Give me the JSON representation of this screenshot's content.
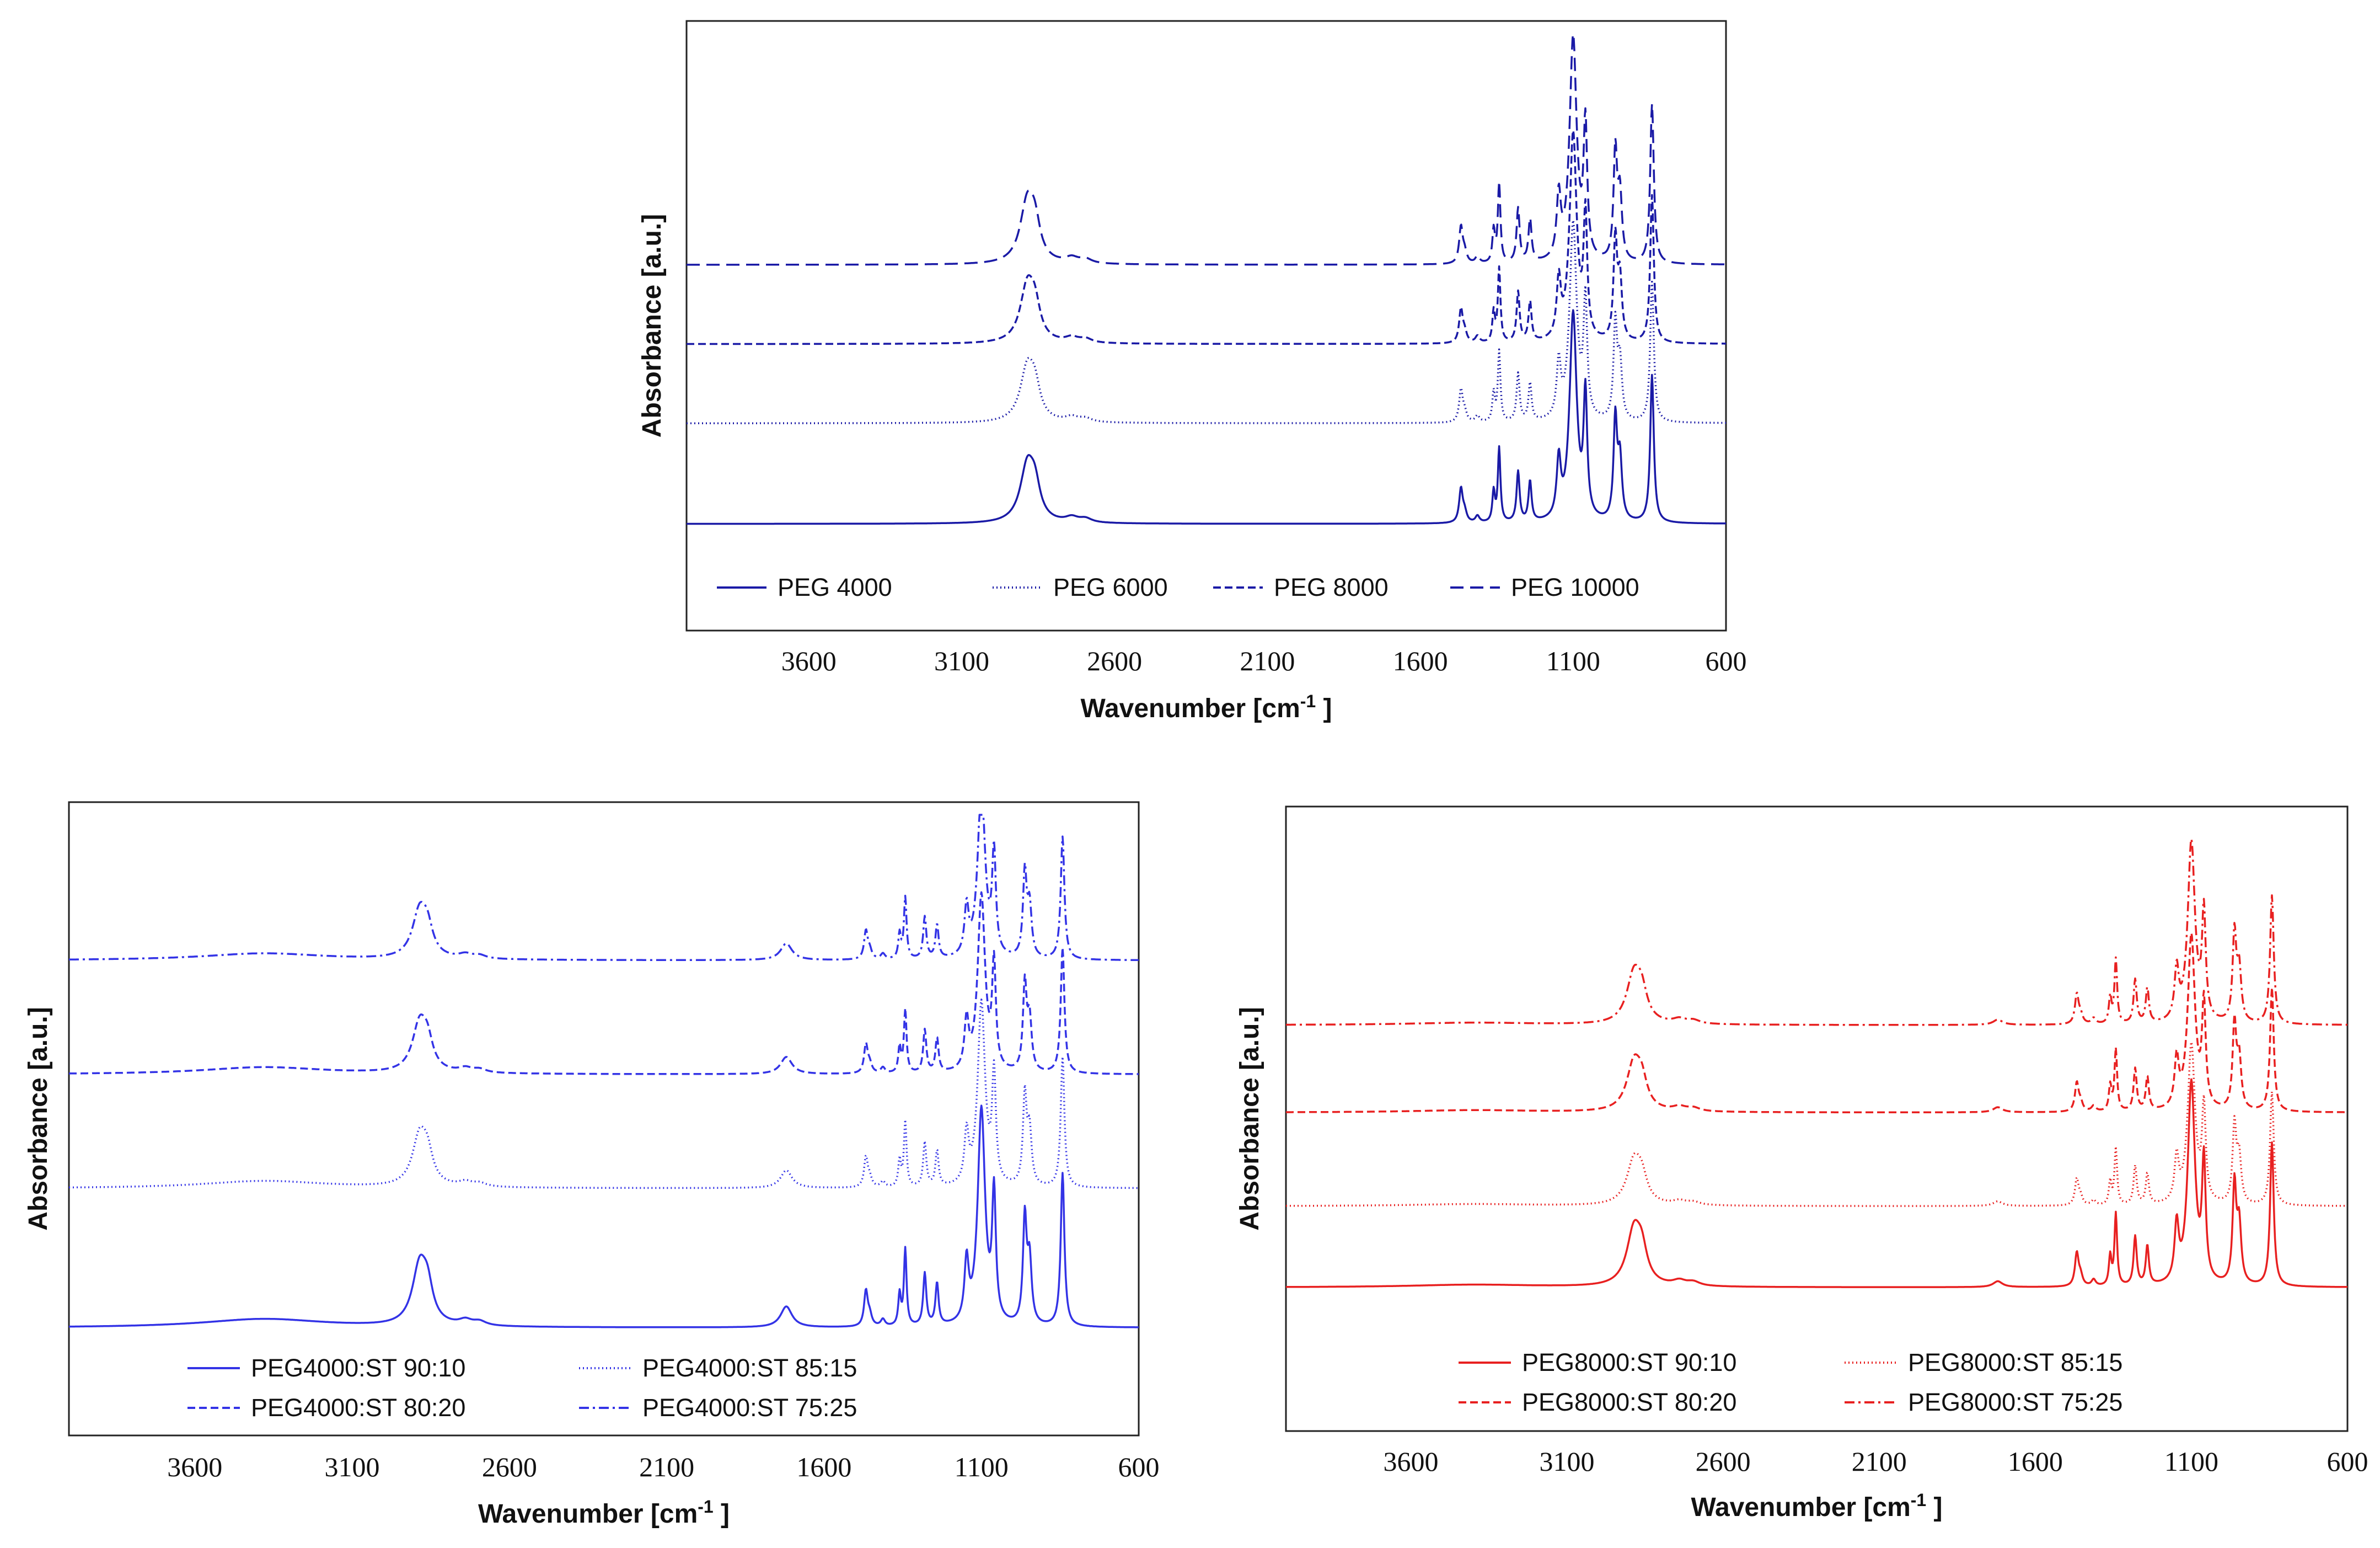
{
  "chart_data": [
    {
      "id": "top",
      "type": "line",
      "title": "",
      "xlabel": "Wavenumber [cm",
      "xlabel_sup": "-1",
      "xlabel_end": " ]",
      "ylabel": "Absorbance [a.u.]",
      "xlim": [
        4000,
        600
      ],
      "ylim": [
        0,
        1
      ],
      "xticks": [
        "3600",
        "3100",
        "2600",
        "2100",
        "1600",
        "1100",
        "600"
      ],
      "legend": "bottom",
      "color": "#1a1aa6",
      "series": [
        {
          "name": "PEG 4000",
          "style": "solid",
          "baseline": 0.175,
          "scale": 1.0
        },
        {
          "name": "PEG 6000",
          "style": "dotted",
          "baseline": 0.34,
          "scale": 0.95
        },
        {
          "name": "PEG 8000",
          "style": "dashed",
          "baseline": 0.47,
          "scale": 1.0
        },
        {
          "name": "PEG 10000",
          "style": "longdashed",
          "baseline": 0.6,
          "scale": 1.08
        }
      ]
    },
    {
      "id": "bottom-left",
      "type": "line",
      "title": "",
      "xlabel": "Wavenumber [cm",
      "xlabel_sup": "-1",
      "xlabel_end": " ]",
      "ylabel": "Absorbance [a.u.]",
      "xlim": [
        4000,
        600
      ],
      "ylim": [
        0,
        1
      ],
      "xticks": [
        "3600",
        "3100",
        "2600",
        "2100",
        "1600",
        "1100",
        "600"
      ],
      "legend": "bottom",
      "color": "#3333e6",
      "series": [
        {
          "name": "PEG4000:ST 90:10",
          "style": "solid",
          "baseline": 0.17,
          "scale": 1.0
        },
        {
          "name": "PEG4000:ST 85:15",
          "style": "dotted",
          "baseline": 0.39,
          "scale": 0.85
        },
        {
          "name": "PEG4000:ST 80:20",
          "style": "dashed",
          "baseline": 0.57,
          "scale": 0.82
        },
        {
          "name": "PEG4000:ST 75:25",
          "style": "dashdot",
          "baseline": 0.75,
          "scale": 0.8
        }
      ]
    },
    {
      "id": "bottom-right",
      "type": "line",
      "title": "",
      "xlabel": "Wavenumber [cm",
      "xlabel_sup": "-1",
      "xlabel_end": " ]",
      "ylabel": "Absorbance [a.u.]",
      "xlim": [
        4000,
        600
      ],
      "ylim": [
        0,
        1
      ],
      "xticks": [
        "3600",
        "3100",
        "2600",
        "2100",
        "1600",
        "1100",
        "600"
      ],
      "legend": "bottom",
      "color": "#e82020",
      "series": [
        {
          "name": "PEG8000:ST 90:10",
          "style": "solid",
          "baseline": 0.23,
          "scale": 0.95
        },
        {
          "name": "PEG8000:ST 85:15",
          "style": "dotted",
          "baseline": 0.36,
          "scale": 0.75
        },
        {
          "name": "PEG8000:ST 80:20",
          "style": "dashed",
          "baseline": 0.51,
          "scale": 0.82
        },
        {
          "name": "PEG8000:ST 75:25",
          "style": "dashdot",
          "baseline": 0.65,
          "scale": 0.85
        }
      ]
    }
  ]
}
